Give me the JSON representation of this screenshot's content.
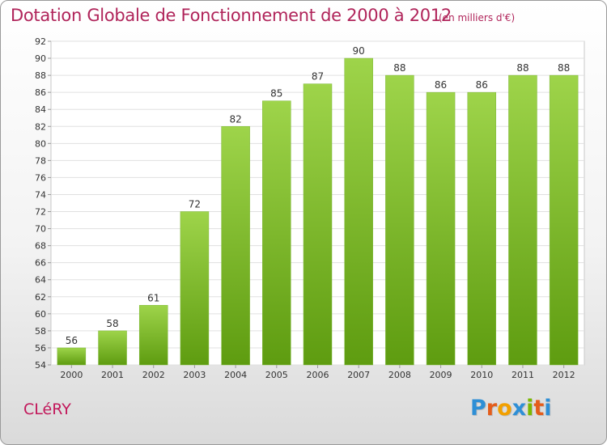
{
  "header": {
    "title": "Dotation Globale de Fonctionnement de 2000 à 2012",
    "subtitle": "(en milliers d'€)"
  },
  "footer": {
    "commune": "CLéRY",
    "logo": [
      "P",
      "r",
      "o",
      "x",
      "i",
      "t",
      "i"
    ]
  },
  "colors": {
    "bar_light": "#9ed44a",
    "bar_dark": "#5e9c10",
    "title": "#b0245a",
    "grid": "#e0e0e0"
  },
  "chart_data": {
    "type": "bar",
    "categories": [
      "2000",
      "2001",
      "2002",
      "2003",
      "2004",
      "2005",
      "2006",
      "2007",
      "2008",
      "2009",
      "2010",
      "2011",
      "2012"
    ],
    "values": [
      56,
      58,
      61,
      72,
      82,
      85,
      87,
      90,
      88,
      86,
      86,
      88,
      88
    ],
    "title": "Dotation Globale de Fonctionnement de 2000 à 2012",
    "subtitle": "(en milliers d'€)",
    "ylim": [
      54,
      92
    ],
    "yticks": [
      54,
      56,
      58,
      60,
      62,
      64,
      66,
      68,
      70,
      72,
      74,
      76,
      78,
      80,
      82,
      84,
      86,
      88,
      90,
      92
    ],
    "grid": true,
    "data_labels": true
  }
}
